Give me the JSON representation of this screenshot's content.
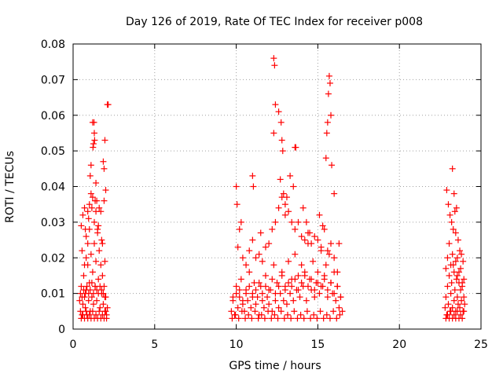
{
  "chart_data": {
    "type": "scatter",
    "title": "Day 126 of 2019, Rate Of TEC Index for receiver p008",
    "xlabel": "GPS time / hours",
    "ylabel": "ROTI / TECUs",
    "xlim": [
      0,
      25
    ],
    "ylim": [
      0,
      0.08
    ],
    "xticks": [
      "0",
      "5",
      "10",
      "15",
      "20",
      "25"
    ],
    "yticks": [
      "0",
      "0.01",
      "0.02",
      "0.03",
      "0.04",
      "0.05",
      "0.06",
      "0.07",
      "0.08"
    ],
    "grid": true,
    "marker": "+",
    "color": "#ff0000",
    "series": [
      {
        "x": [
          0.4,
          0.45,
          0.5,
          0.55,
          0.6,
          0.65,
          0.7,
          0.75,
          0.8,
          0.85,
          0.9,
          0.95,
          1.0,
          1.05,
          1.1,
          1.15,
          1.2,
          1.25,
          1.3,
          1.35,
          1.4,
          1.45,
          1.5,
          1.55,
          1.6,
          1.65,
          1.7,
          1.75,
          1.8,
          1.85,
          1.9,
          1.95,
          2.0,
          2.05,
          2.1,
          0.5,
          0.6,
          0.7,
          0.8,
          0.9,
          1.0,
          1.1,
          1.2,
          1.3,
          1.4,
          1.5,
          1.6,
          1.7,
          1.8,
          1.9,
          2.0,
          0.55,
          0.75,
          0.95,
          1.15,
          1.35,
          1.55,
          1.75,
          1.95,
          1.2,
          1.25,
          1.3,
          1.22,
          1.28,
          1.32,
          1.1,
          1.05,
          1.4,
          1.45,
          1.85,
          1.9,
          1.95,
          2.1,
          2.15,
          1.0,
          0.9,
          0.8,
          0.7,
          0.5,
          0.6,
          0.7,
          0.8,
          0.9,
          1.0,
          1.1,
          1.2,
          1.3,
          1.4,
          1.5,
          1.6,
          1.7,
          1.8,
          1.9,
          2.0,
          2.05,
          0.45,
          0.55,
          0.65,
          0.75,
          0.85,
          0.95,
          1.05,
          1.15,
          1.25,
          1.35,
          1.45,
          1.55,
          1.65,
          1.75,
          1.85,
          1.95
        ],
        "y": [
          0.008,
          0.005,
          0.012,
          0.004,
          0.007,
          0.015,
          0.009,
          0.006,
          0.011,
          0.004,
          0.018,
          0.008,
          0.013,
          0.005,
          0.021,
          0.009,
          0.016,
          0.007,
          0.024,
          0.012,
          0.019,
          0.008,
          0.027,
          0.014,
          0.022,
          0.006,
          0.018,
          0.01,
          0.015,
          0.007,
          0.012,
          0.005,
          0.009,
          0.004,
          0.006,
          0.029,
          0.032,
          0.034,
          0.026,
          0.033,
          0.035,
          0.038,
          0.037,
          0.03,
          0.033,
          0.028,
          0.034,
          0.033,
          0.024,
          0.036,
          0.039,
          0.022,
          0.028,
          0.031,
          0.034,
          0.036,
          0.029,
          0.025,
          0.019,
          0.058,
          0.052,
          0.055,
          0.051,
          0.058,
          0.053,
          0.046,
          0.043,
          0.041,
          0.036,
          0.047,
          0.045,
          0.053,
          0.063,
          0.063,
          0.028,
          0.024,
          0.02,
          0.018,
          0.003,
          0.004,
          0.003,
          0.005,
          0.003,
          0.004,
          0.003,
          0.005,
          0.003,
          0.004,
          0.003,
          0.005,
          0.003,
          0.004,
          0.003,
          0.005,
          0.003,
          0.01,
          0.009,
          0.011,
          0.01,
          0.012,
          0.01,
          0.011,
          0.013,
          0.01,
          0.012,
          0.011,
          0.01,
          0.012,
          0.011,
          0.01,
          0.009
        ]
      },
      {
        "x": [
          9.7,
          9.8,
          9.9,
          10.0,
          10.1,
          10.2,
          10.3,
          10.4,
          10.5,
          10.6,
          10.7,
          10.8,
          10.9,
          11.0,
          11.1,
          11.2,
          11.3,
          11.4,
          11.5,
          11.6,
          11.7,
          11.8,
          11.9,
          12.0,
          12.1,
          12.2,
          12.3,
          12.4,
          12.5,
          12.6,
          12.7,
          12.8,
          12.9,
          13.0,
          13.1,
          13.2,
          13.3,
          13.4,
          13.5,
          13.6,
          13.7,
          13.8,
          13.9,
          14.0,
          14.1,
          14.2,
          14.3,
          14.4,
          14.5,
          14.6,
          14.7,
          14.8,
          14.9,
          15.0,
          15.1,
          15.2,
          15.3,
          15.4,
          15.5,
          15.6,
          15.7,
          15.8,
          15.9,
          16.0,
          16.1,
          16.2,
          16.3,
          16.4,
          16.5,
          9.75,
          9.95,
          10.15,
          10.35,
          10.55,
          10.75,
          10.95,
          11.15,
          11.35,
          11.55,
          11.75,
          11.95,
          12.15,
          12.35,
          12.55,
          12.75,
          12.95,
          13.15,
          13.35,
          13.55,
          13.75,
          13.95,
          14.15,
          14.35,
          14.55,
          14.75,
          14.95,
          15.15,
          15.35,
          15.55,
          15.75,
          15.95,
          16.15,
          16.35,
          10.1,
          10.2,
          10.3,
          10.4,
          10.6,
          10.8,
          11.0,
          11.2,
          11.4,
          11.6,
          11.8,
          12.0,
          12.2,
          12.4,
          12.6,
          12.8,
          13.0,
          13.2,
          13.4,
          13.6,
          13.8,
          14.0,
          14.2,
          14.4,
          14.6,
          14.8,
          15.0,
          15.2,
          15.4,
          15.6,
          15.8,
          16.0,
          16.2,
          12.3,
          12.35,
          12.4,
          12.3,
          12.6,
          12.75,
          12.8,
          12.85,
          12.7,
          12.9,
          13.6,
          13.65,
          13.5,
          15.6,
          15.65,
          15.7,
          15.55,
          15.75,
          15.8,
          15.5,
          15.85,
          10.0,
          10.05,
          11.0,
          11.05,
          11.5,
          13.0,
          13.1,
          13.3,
          14.1,
          14.3,
          14.5,
          15.1,
          15.3,
          16.0,
          16.3,
          9.8,
          10.0,
          10.2,
          10.4,
          10.6,
          10.8,
          11.0,
          11.2,
          11.4,
          11.6,
          11.8,
          12.0,
          12.2,
          12.4,
          12.6,
          12.8,
          13.0,
          13.2,
          13.4,
          13.6,
          13.8,
          14.0,
          14.2,
          14.4,
          14.6,
          14.8,
          15.0,
          15.2,
          15.4,
          15.6,
          15.8,
          16.0,
          16.2,
          16.4
        ],
        "y": [
          0.005,
          0.008,
          0.004,
          0.012,
          0.006,
          0.009,
          0.014,
          0.007,
          0.005,
          0.011,
          0.008,
          0.016,
          0.006,
          0.01,
          0.013,
          0.007,
          0.009,
          0.004,
          0.012,
          0.008,
          0.006,
          0.015,
          0.009,
          0.007,
          0.011,
          0.005,
          0.018,
          0.008,
          0.013,
          0.006,
          0.01,
          0.016,
          0.008,
          0.012,
          0.007,
          0.019,
          0.01,
          0.014,
          0.008,
          0.021,
          0.011,
          0.015,
          0.009,
          0.018,
          0.012,
          0.016,
          0.008,
          0.024,
          0.014,
          0.011,
          0.019,
          0.009,
          0.013,
          0.016,
          0.01,
          0.022,
          0.012,
          0.015,
          0.018,
          0.009,
          0.021,
          0.013,
          0.01,
          0.016,
          0.008,
          0.012,
          0.006,
          0.009,
          0.005,
          0.003,
          0.004,
          0.003,
          0.005,
          0.003,
          0.004,
          0.003,
          0.005,
          0.003,
          0.004,
          0.003,
          0.005,
          0.003,
          0.004,
          0.003,
          0.005,
          0.003,
          0.004,
          0.003,
          0.005,
          0.003,
          0.004,
          0.003,
          0.005,
          0.003,
          0.004,
          0.003,
          0.005,
          0.003,
          0.004,
          0.003,
          0.005,
          0.003,
          0.004,
          0.023,
          0.028,
          0.03,
          0.02,
          0.018,
          0.022,
          0.025,
          0.02,
          0.021,
          0.019,
          0.023,
          0.024,
          0.028,
          0.03,
          0.034,
          0.037,
          0.035,
          0.033,
          0.03,
          0.028,
          0.03,
          0.026,
          0.025,
          0.027,
          0.024,
          0.026,
          0.025,
          0.023,
          0.028,
          0.022,
          0.024,
          0.02,
          0.016,
          0.076,
          0.074,
          0.063,
          0.055,
          0.061,
          0.058,
          0.053,
          0.05,
          0.042,
          0.038,
          0.051,
          0.051,
          0.04,
          0.058,
          0.066,
          0.071,
          0.055,
          0.069,
          0.06,
          0.048,
          0.046,
          0.04,
          0.035,
          0.043,
          0.04,
          0.027,
          0.032,
          0.037,
          0.043,
          0.034,
          0.03,
          0.027,
          0.032,
          0.029,
          0.038,
          0.024,
          0.009,
          0.01,
          0.011,
          0.008,
          0.01,
          0.012,
          0.009,
          0.011,
          0.013,
          0.01,
          0.012,
          0.011,
          0.014,
          0.01,
          0.012,
          0.015,
          0.011,
          0.013,
          0.012,
          0.014,
          0.011,
          0.013,
          0.015,
          0.012,
          0.014,
          0.011,
          0.013,
          0.012,
          0.014,
          0.011,
          0.013,
          0.01,
          0.012,
          0.009
        ]
      },
      {
        "x": [
          22.8,
          22.85,
          22.9,
          22.95,
          23.0,
          23.05,
          23.1,
          23.15,
          23.2,
          23.25,
          23.3,
          23.35,
          23.4,
          23.45,
          23.5,
          23.55,
          23.6,
          23.65,
          23.7,
          23.75,
          23.8,
          23.85,
          23.9,
          23.95,
          24.0,
          22.85,
          22.95,
          23.05,
          23.15,
          23.25,
          23.35,
          23.45,
          23.55,
          23.65,
          23.75,
          23.85,
          23.95,
          22.9,
          23.0,
          23.1,
          23.2,
          23.3,
          23.4,
          23.5,
          23.6,
          23.7,
          23.8,
          23.9,
          23.25,
          23.35,
          23.45,
          23.55,
          22.85,
          22.95,
          23.05,
          23.15,
          23.25,
          23.35,
          23.45,
          23.55,
          23.65,
          23.75,
          23.85,
          23.95
        ],
        "y": [
          0.006,
          0.009,
          0.004,
          0.012,
          0.007,
          0.015,
          0.005,
          0.01,
          0.013,
          0.006,
          0.018,
          0.008,
          0.011,
          0.005,
          0.014,
          0.009,
          0.007,
          0.016,
          0.006,
          0.011,
          0.008,
          0.013,
          0.005,
          0.009,
          0.007,
          0.003,
          0.004,
          0.003,
          0.005,
          0.003,
          0.004,
          0.003,
          0.005,
          0.003,
          0.004,
          0.003,
          0.005,
          0.039,
          0.035,
          0.032,
          0.03,
          0.028,
          0.033,
          0.034,
          0.025,
          0.022,
          0.021,
          0.019,
          0.045,
          0.038,
          0.027,
          0.02,
          0.017,
          0.02,
          0.024,
          0.018,
          0.021,
          0.016,
          0.019,
          0.015,
          0.013,
          0.017,
          0.012,
          0.014
        ]
      }
    ]
  }
}
